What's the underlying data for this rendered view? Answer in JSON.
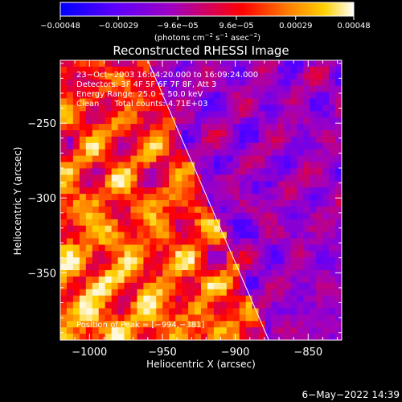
{
  "chart_data": {
    "type": "heatmap",
    "title": "Reconstructed RHESSI Image",
    "xlabel": "Heliocentric X (arcsec)",
    "ylabel": "Heliocentric Y (arcsec)",
    "xlim": [
      -1020,
      -827
    ],
    "ylim": [
      -395,
      -208
    ],
    "x_ticks": [
      -1000,
      -950,
      -900,
      -850
    ],
    "x_tick_labels": [
      "−1000",
      "−950",
      "−900",
      "−850"
    ],
    "y_ticks": [
      -250,
      -300,
      -350
    ],
    "y_tick_labels": [
      "−250",
      "−300",
      "−350"
    ],
    "colorbar": {
      "min": -0.00048,
      "max": 0.00048,
      "ticks": [
        -0.00048,
        -0.00029,
        -9.6e-05,
        9.6e-05,
        0.00029,
        0.00048
      ],
      "tick_labels": [
        "−0.00048",
        "−0.00029",
        "−9.6e−05",
        "9.6e−05",
        "0.00029",
        "0.00048"
      ],
      "units_base": "(photons cm",
      "units_exp1": "−2",
      "units_mid": " s",
      "units_exp2": "−1",
      "units_mid2": " asec",
      "units_exp3": "−2",
      "units_end": ")"
    },
    "limb_line": {
      "x": [
        -960,
        -877
      ],
      "y": [
        -208,
        -395
      ]
    },
    "annotations": {
      "line1": "23−Oct−2003 16:04:20.000 to 16:09:24.000",
      "line2": "Detectors: 3F 4F 5F 6F 7F 8F, Att 3",
      "line3": "Energy Range: 25.0 − 50.0 keV",
      "line4": "Clean      Total counts: 4.71E+03",
      "peak": "Position of Peak = [−994,−381]"
    },
    "timestamp": "6−May−2022 14:39"
  },
  "colors": {
    "background": "#000000",
    "colormap": [
      "#0000ff",
      "#5a00ff",
      "#a000c0",
      "#d00060",
      "#ff0000",
      "#ff8000",
      "#ffd000",
      "#ffffff"
    ]
  }
}
